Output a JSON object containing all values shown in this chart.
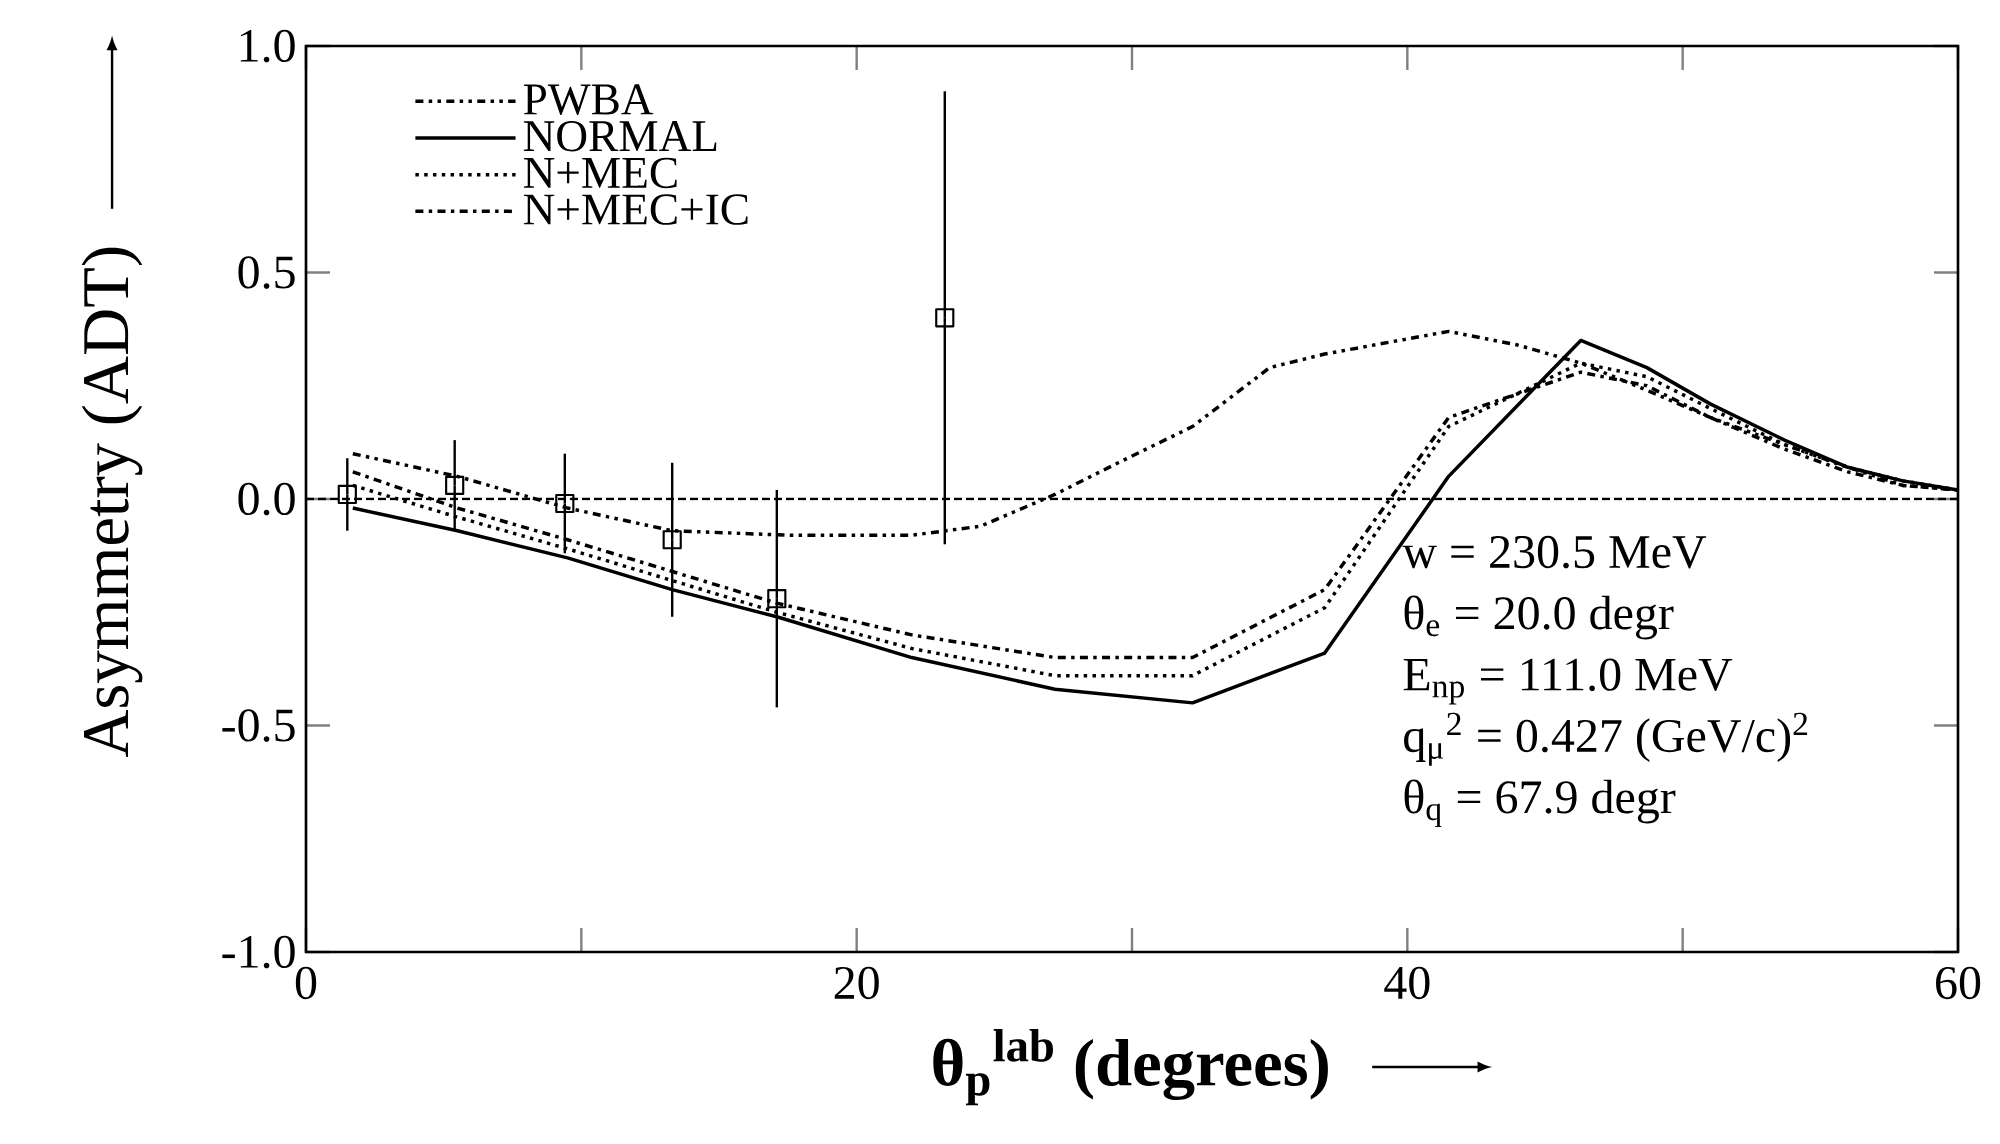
{
  "chart_data": {
    "type": "line",
    "xlabel": "θ$_{p}$$^{lab}$ (degrees)",
    "ylabel": "Asymmetry (ADT)",
    "xlim": [
      0,
      60
    ],
    "ylim": [
      -1.0,
      1.0
    ],
    "xticks": [
      0,
      {
        "value": 10,
        "label": null
      },
      20,
      {
        "value": 30,
        "label": null
      },
      40,
      {
        "value": 50,
        "label": null
      },
      60
    ],
    "yticks": [
      {
        "value": -1.0,
        "label": "-1.0"
      },
      {
        "value": -0.5,
        "label": "-0.5"
      },
      {
        "value": 0.0,
        "label": "0.0"
      },
      {
        "value": 0.5,
        "label": "0.5"
      },
      {
        "value": 1.0,
        "label": "1.0"
      }
    ],
    "legend": "top left",
    "marker": "none",
    "ref_lines": [
      {
        "axis": "y",
        "value": 0,
        "line_style": "dashed"
      }
    ],
    "annotations": [
      "w = 230.5 MeV",
      "θ$_{e}$ = 20.0 degr",
      "E$_{np}$ = 111.0 MeV",
      "q$_{μ}$$^{2}$ = 0.427 (GeV/c)$^{2}$",
      "θ$_{q}$ = 67.9 degr"
    ],
    "series": [
      {
        "name": "PWBA",
        "color": "#000000",
        "line_style": "dashdotdot",
        "x": [
          1.7,
          5.5,
          9.5,
          13.3,
          17.5,
          22.0,
          24.5,
          27.2,
          29.5,
          32.2,
          35.0,
          37.0,
          41.5,
          44.0,
          46.3,
          48.7,
          51.0,
          53.7,
          56.0,
          58.0,
          60.0
        ],
        "values": [
          0.1,
          0.05,
          -0.02,
          -0.07,
          -0.08,
          -0.08,
          -0.06,
          0.01,
          0.08,
          0.16,
          0.29,
          0.32,
          0.37,
          0.34,
          0.3,
          0.24,
          0.18,
          0.12,
          0.07,
          0.03,
          0.02
        ]
      },
      {
        "name": "NORMAL",
        "color": "#000000",
        "line_style": "solid",
        "x": [
          1.7,
          5.5,
          9.5,
          13.3,
          17.1,
          22.0,
          27.2,
          32.2,
          37.0,
          41.5,
          46.3,
          48.7,
          51.0,
          53.7,
          56.0,
          58.0,
          60.0
        ],
        "values": [
          -0.02,
          -0.07,
          -0.13,
          -0.2,
          -0.26,
          -0.35,
          -0.42,
          -0.45,
          -0.34,
          0.05,
          0.35,
          0.29,
          0.21,
          0.13,
          0.07,
          0.04,
          0.02
        ]
      },
      {
        "name": "N+MEC",
        "color": "#000000",
        "line_style": "dotted",
        "x": [
          1.7,
          5.5,
          9.5,
          13.3,
          17.1,
          22.0,
          27.2,
          32.2,
          37.0,
          41.5,
          46.3,
          48.7,
          51.0,
          53.7,
          56.0,
          58.0,
          60.0
        ],
        "values": [
          0.03,
          -0.04,
          -0.11,
          -0.18,
          -0.25,
          -0.33,
          -0.39,
          -0.39,
          -0.24,
          0.16,
          0.3,
          0.27,
          0.2,
          0.12,
          0.07,
          0.04,
          0.02
        ]
      },
      {
        "name": "N+MEC+IC",
        "color": "#000000",
        "line_style": "dashdot",
        "x": [
          1.7,
          5.5,
          9.5,
          13.3,
          17.1,
          22.0,
          27.2,
          32.2,
          37.0,
          41.5,
          46.3,
          48.7,
          51.0,
          53.7,
          56.0,
          58.0,
          60.0
        ],
        "values": [
          0.06,
          -0.02,
          -0.09,
          -0.16,
          -0.23,
          -0.3,
          -0.35,
          -0.35,
          -0.2,
          0.18,
          0.28,
          0.25,
          0.18,
          0.11,
          0.06,
          0.03,
          0.02
        ]
      },
      {
        "type": "scatter",
        "color": "#000000",
        "marker": "square",
        "x": [
          1.5,
          5.4,
          9.4,
          13.3,
          17.1,
          23.2
        ],
        "values": [
          0.01,
          0.03,
          -0.01,
          -0.09,
          -0.22,
          0.4
        ],
        "errors": [
          0.08,
          0.1,
          0.11,
          0.17,
          0.24,
          0.5
        ]
      }
    ]
  }
}
